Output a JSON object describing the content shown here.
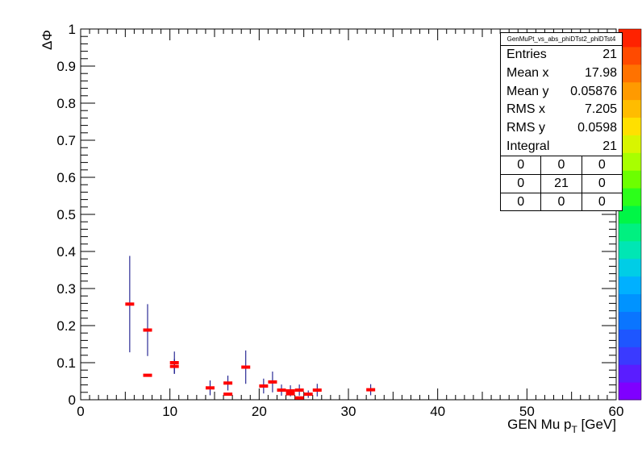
{
  "chart_data": {
    "type": "scatter",
    "title": "",
    "xlabel": "GEN Mu p_T [GeV]",
    "ylabel": "ΔΦ",
    "xlim": [
      0,
      60
    ],
    "ylim": [
      0,
      1
    ],
    "x_ticks": [
      "0",
      "10",
      "20",
      "30",
      "40",
      "50",
      "60"
    ],
    "y_ticks": [
      "0",
      "0.1",
      "0.2",
      "0.3",
      "0.4",
      "0.5",
      "0.6",
      "0.7",
      "0.8",
      "0.9",
      "1"
    ],
    "grid": false,
    "marker_color": "#ff0000",
    "errorbar_color": "#000080",
    "points": [
      {
        "x": 5.5,
        "y": 0.258,
        "err": 0.13
      },
      {
        "x": 7.5,
        "y": 0.188,
        "err": 0.07
      },
      {
        "x": 7.5,
        "y": 0.066,
        "err": 0
      },
      {
        "x": 10.5,
        "y": 0.1,
        "err": 0.03
      },
      {
        "x": 10.5,
        "y": 0.09,
        "err": 0.02
      },
      {
        "x": 14.5,
        "y": 0.032,
        "err": 0.02
      },
      {
        "x": 16.5,
        "y": 0.045,
        "err": 0.02
      },
      {
        "x": 16.5,
        "y": 0.015,
        "err": 0
      },
      {
        "x": 18.5,
        "y": 0.088,
        "err": 0.045
      },
      {
        "x": 20.5,
        "y": 0.037,
        "err": 0.02
      },
      {
        "x": 21.5,
        "y": 0.048,
        "err": 0.028
      },
      {
        "x": 22.5,
        "y": 0.026,
        "err": 0.015
      },
      {
        "x": 23.5,
        "y": 0.024,
        "err": 0.015
      },
      {
        "x": 23.5,
        "y": 0.016,
        "err": 0
      },
      {
        "x": 24.5,
        "y": 0.026,
        "err": 0.015
      },
      {
        "x": 24.5,
        "y": 0.005,
        "err": 0
      },
      {
        "x": 25.5,
        "y": 0.015,
        "err": 0.01
      },
      {
        "x": 26.5,
        "y": 0.026,
        "err": 0.017
      },
      {
        "x": 32.5,
        "y": 0.027,
        "err": 0.015
      }
    ],
    "palette": [
      "#7f00ff",
      "#5a1dff",
      "#3a3aff",
      "#1e56ff",
      "#0a75ff",
      "#0093ff",
      "#00b0ff",
      "#00cde6",
      "#00e6b4",
      "#00f080",
      "#00f646",
      "#2cff1a",
      "#6cff00",
      "#a8ff00",
      "#d8f500",
      "#ffe000",
      "#ffbc00",
      "#ff9a00",
      "#ff7200",
      "#ff4a00",
      "#ff2200"
    ]
  },
  "stats_box": {
    "name": "GenMuPt_vs_abs_phiDTst2_phiDTst4",
    "rows": [
      {
        "label": "Entries",
        "value": "21"
      },
      {
        "label": "Mean x",
        "value": "17.98"
      },
      {
        "label": "Mean y",
        "value": "0.05876"
      },
      {
        "label": "RMS x",
        "value": "7.205"
      },
      {
        "label": "RMS y",
        "value": "0.0598"
      },
      {
        "label": "Integral",
        "value": "21"
      }
    ],
    "grid": [
      [
        "0",
        "0",
        "0"
      ],
      [
        "0",
        "21",
        "0"
      ],
      [
        "0",
        "0",
        "0"
      ]
    ]
  }
}
